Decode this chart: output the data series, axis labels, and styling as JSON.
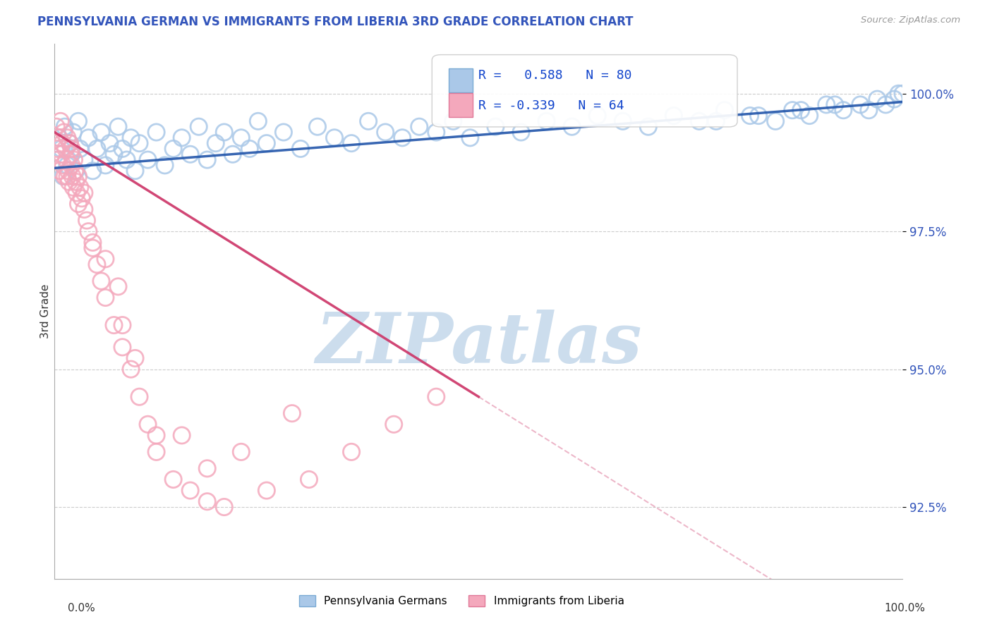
{
  "title": "PENNSYLVANIA GERMAN VS IMMIGRANTS FROM LIBERIA 3RD GRADE CORRELATION CHART",
  "source_text": "Source: ZipAtlas.com",
  "ylabel": "3rd Grade",
  "xlim": [
    0.0,
    100.0
  ],
  "ylim": [
    91.2,
    100.9
  ],
  "yticks": [
    92.5,
    95.0,
    97.5,
    100.0
  ],
  "ytick_labels": [
    "92.5%",
    "95.0%",
    "97.5%",
    "100.0%"
  ],
  "blue_color": "#aac8e8",
  "blue_edge_color": "#7aaad4",
  "pink_color": "#f4a8bc",
  "pink_edge_color": "#e07898",
  "blue_line_color": "#2255aa",
  "pink_line_color": "#cc3366",
  "watermark_color": "#ccdded",
  "background_color": "#ffffff",
  "grid_color": "#cccccc",
  "title_color": "#3355bb",
  "source_color": "#999999",
  "legend_label_blue": "Pennsylvania Germans",
  "legend_label_pink": "Immigrants from Liberia",
  "blue_scatter_x": [
    0.3,
    0.5,
    0.8,
    1.0,
    1.2,
    1.5,
    1.8,
    2.0,
    2.2,
    2.5,
    2.8,
    3.0,
    3.5,
    4.0,
    4.5,
    5.0,
    5.5,
    6.0,
    6.5,
    7.0,
    7.5,
    8.0,
    8.5,
    9.0,
    9.5,
    10.0,
    11.0,
    12.0,
    13.0,
    14.0,
    15.0,
    16.0,
    17.0,
    18.0,
    19.0,
    20.0,
    21.0,
    22.0,
    23.0,
    24.0,
    25.0,
    27.0,
    29.0,
    31.0,
    33.0,
    35.0,
    37.0,
    39.0,
    41.0,
    43.0,
    45.0,
    47.0,
    49.0,
    52.0,
    55.0,
    58.0,
    61.0,
    64.0,
    67.0,
    70.0,
    73.0,
    76.0,
    79.0,
    82.0,
    85.0,
    87.0,
    89.0,
    91.0,
    93.0,
    95.0,
    96.0,
    97.0,
    98.0,
    99.0,
    99.5,
    100.0,
    78.0,
    83.0,
    88.0,
    92.0
  ],
  "blue_scatter_y": [
    98.8,
    99.2,
    99.0,
    98.5,
    99.4,
    98.7,
    99.1,
    98.9,
    99.3,
    98.6,
    99.5,
    99.0,
    98.8,
    99.2,
    98.6,
    99.0,
    99.3,
    98.7,
    99.1,
    98.9,
    99.4,
    99.0,
    98.8,
    99.2,
    98.6,
    99.1,
    98.8,
    99.3,
    98.7,
    99.0,
    99.2,
    98.9,
    99.4,
    98.8,
    99.1,
    99.3,
    98.9,
    99.2,
    99.0,
    99.5,
    99.1,
    99.3,
    99.0,
    99.4,
    99.2,
    99.1,
    99.5,
    99.3,
    99.2,
    99.4,
    99.3,
    99.5,
    99.2,
    99.4,
    99.3,
    99.5,
    99.4,
    99.6,
    99.5,
    99.4,
    99.6,
    99.5,
    99.7,
    99.6,
    99.5,
    99.7,
    99.6,
    99.8,
    99.7,
    99.8,
    99.7,
    99.9,
    99.8,
    99.9,
    100.0,
    100.0,
    99.5,
    99.6,
    99.7,
    99.8
  ],
  "pink_scatter_x": [
    0.2,
    0.3,
    0.4,
    0.5,
    0.6,
    0.7,
    0.8,
    0.9,
    1.0,
    1.1,
    1.2,
    1.3,
    1.4,
    1.5,
    1.6,
    1.7,
    1.8,
    1.9,
    2.0,
    2.1,
    2.2,
    2.3,
    2.4,
    2.5,
    2.6,
    2.8,
    3.0,
    3.2,
    3.5,
    3.8,
    4.0,
    4.5,
    5.0,
    5.5,
    6.0,
    7.0,
    8.0,
    9.0,
    10.0,
    11.0,
    12.0,
    14.0,
    16.0,
    18.0,
    20.0,
    25.0,
    30.0,
    35.0,
    40.0,
    45.0,
    2.0,
    3.5,
    6.0,
    7.5,
    15.0,
    22.0,
    28.0,
    18.0,
    12.0,
    8.0,
    1.5,
    2.8,
    4.5,
    9.5
  ],
  "pink_scatter_y": [
    99.4,
    99.0,
    98.8,
    99.2,
    98.6,
    99.5,
    98.9,
    99.1,
    98.7,
    99.3,
    98.5,
    99.0,
    98.8,
    99.2,
    98.6,
    98.4,
    99.1,
    98.9,
    98.7,
    98.5,
    98.3,
    98.8,
    98.6,
    98.4,
    98.2,
    98.5,
    98.3,
    98.1,
    97.9,
    97.7,
    97.5,
    97.2,
    96.9,
    96.6,
    96.3,
    95.8,
    95.4,
    95.0,
    94.5,
    94.0,
    93.5,
    93.0,
    92.8,
    92.6,
    92.5,
    92.8,
    93.0,
    93.5,
    94.0,
    94.5,
    99.0,
    98.2,
    97.0,
    96.5,
    93.8,
    93.5,
    94.2,
    93.2,
    93.8,
    95.8,
    98.5,
    98.0,
    97.3,
    95.2
  ],
  "blue_trend_x": [
    0.0,
    100.0
  ],
  "blue_trend_y": [
    98.65,
    99.85
  ],
  "pink_trend_x": [
    0.0,
    50.0
  ],
  "pink_trend_y": [
    99.3,
    94.5
  ]
}
